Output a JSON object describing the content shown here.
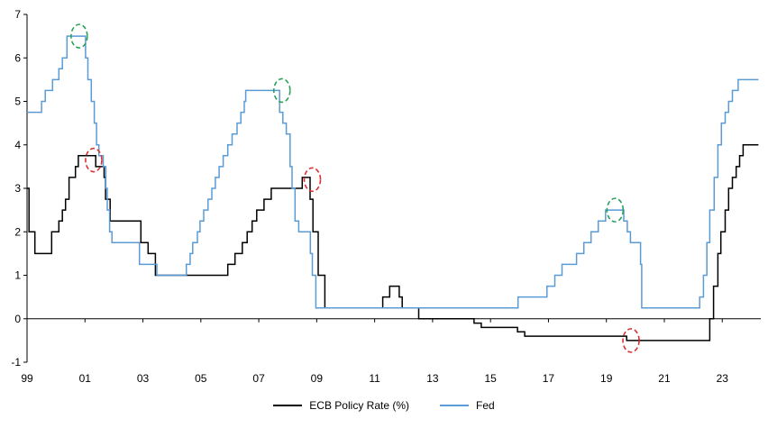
{
  "chart_data": {
    "type": "line",
    "title": "",
    "xlabel": "",
    "ylabel": "",
    "grid": false,
    "legend_position": "bottom",
    "xlim": [
      1999,
      2024.33
    ],
    "ylim": [
      -1,
      7
    ],
    "y_ticks": [
      -1,
      0,
      1,
      2,
      3,
      4,
      5,
      6,
      7
    ],
    "x_ticks": [
      1999,
      2001,
      2003,
      2005,
      2007,
      2009,
      2011,
      2013,
      2015,
      2017,
      2019,
      2021,
      2023
    ],
    "x_tick_labels": [
      "99",
      "01",
      "03",
      "05",
      "07",
      "09",
      "11",
      "13",
      "15",
      "17",
      "19",
      "21",
      "23"
    ],
    "axis_color": "#000000",
    "series": [
      {
        "name": "ECB Policy Rate (%)",
        "color": "#000000",
        "step": true,
        "points": [
          [
            1999.0,
            3.0
          ],
          [
            1999.07,
            2.0
          ],
          [
            1999.27,
            1.5
          ],
          [
            1999.85,
            2.0
          ],
          [
            2000.1,
            2.25
          ],
          [
            2000.22,
            2.5
          ],
          [
            2000.33,
            2.75
          ],
          [
            2000.45,
            3.25
          ],
          [
            2000.67,
            3.5
          ],
          [
            2000.77,
            3.75
          ],
          [
            2001.37,
            3.5
          ],
          [
            2001.66,
            3.25
          ],
          [
            2001.71,
            2.75
          ],
          [
            2001.87,
            2.25
          ],
          [
            2002.93,
            1.75
          ],
          [
            2003.18,
            1.5
          ],
          [
            2003.43,
            1.0
          ],
          [
            2005.93,
            1.25
          ],
          [
            2006.18,
            1.5
          ],
          [
            2006.43,
            1.75
          ],
          [
            2006.6,
            2.0
          ],
          [
            2006.77,
            2.25
          ],
          [
            2006.93,
            2.5
          ],
          [
            2007.18,
            2.75
          ],
          [
            2007.43,
            3.0
          ],
          [
            2008.5,
            3.25
          ],
          [
            2008.77,
            2.75
          ],
          [
            2008.87,
            2.0
          ],
          [
            2009.05,
            1.0
          ],
          [
            2009.28,
            0.25
          ],
          [
            2011.28,
            0.5
          ],
          [
            2011.52,
            0.75
          ],
          [
            2011.85,
            0.5
          ],
          [
            2011.95,
            0.25
          ],
          [
            2012.52,
            0.0
          ],
          [
            2014.43,
            -0.1
          ],
          [
            2014.68,
            -0.2
          ],
          [
            2015.93,
            -0.3
          ],
          [
            2016.18,
            -0.4
          ],
          [
            2019.7,
            -0.5
          ],
          [
            2022.57,
            0.0
          ],
          [
            2022.7,
            0.75
          ],
          [
            2022.85,
            1.5
          ],
          [
            2022.95,
            2.0
          ],
          [
            2023.1,
            2.5
          ],
          [
            2023.22,
            3.0
          ],
          [
            2023.35,
            3.25
          ],
          [
            2023.48,
            3.5
          ],
          [
            2023.6,
            3.75
          ],
          [
            2023.72,
            4.0
          ],
          [
            2024.25,
            4.0
          ]
        ]
      },
      {
        "name": "Fed",
        "color": "#5b9bd5",
        "step": true,
        "points": [
          [
            1999.0,
            4.75
          ],
          [
            1999.5,
            5.0
          ],
          [
            1999.63,
            5.25
          ],
          [
            1999.88,
            5.5
          ],
          [
            2000.1,
            5.75
          ],
          [
            2000.22,
            6.0
          ],
          [
            2000.38,
            6.5
          ],
          [
            2001.02,
            6.0
          ],
          [
            2001.1,
            5.5
          ],
          [
            2001.22,
            5.0
          ],
          [
            2001.32,
            4.5
          ],
          [
            2001.4,
            4.0
          ],
          [
            2001.48,
            3.75
          ],
          [
            2001.63,
            3.5
          ],
          [
            2001.72,
            3.0
          ],
          [
            2001.77,
            2.5
          ],
          [
            2001.85,
            2.0
          ],
          [
            2001.93,
            1.75
          ],
          [
            2002.88,
            1.25
          ],
          [
            2003.48,
            1.0
          ],
          [
            2004.5,
            1.25
          ],
          [
            2004.63,
            1.5
          ],
          [
            2004.72,
            1.75
          ],
          [
            2004.88,
            2.0
          ],
          [
            2004.97,
            2.25
          ],
          [
            2005.1,
            2.5
          ],
          [
            2005.25,
            2.75
          ],
          [
            2005.38,
            3.0
          ],
          [
            2005.5,
            3.25
          ],
          [
            2005.63,
            3.5
          ],
          [
            2005.77,
            3.75
          ],
          [
            2005.93,
            4.0
          ],
          [
            2006.08,
            4.25
          ],
          [
            2006.25,
            4.5
          ],
          [
            2006.38,
            4.75
          ],
          [
            2006.5,
            5.0
          ],
          [
            2006.55,
            5.25
          ],
          [
            2007.72,
            4.75
          ],
          [
            2007.83,
            4.5
          ],
          [
            2007.95,
            4.25
          ],
          [
            2008.08,
            3.5
          ],
          [
            2008.15,
            3.0
          ],
          [
            2008.25,
            2.25
          ],
          [
            2008.38,
            2.0
          ],
          [
            2008.78,
            1.5
          ],
          [
            2008.85,
            1.0
          ],
          [
            2008.97,
            0.25
          ],
          [
            2015.95,
            0.5
          ],
          [
            2016.95,
            0.75
          ],
          [
            2017.22,
            1.0
          ],
          [
            2017.47,
            1.25
          ],
          [
            2017.97,
            1.5
          ],
          [
            2018.22,
            1.75
          ],
          [
            2018.47,
            2.0
          ],
          [
            2018.72,
            2.25
          ],
          [
            2018.97,
            2.5
          ],
          [
            2019.6,
            2.25
          ],
          [
            2019.72,
            2.0
          ],
          [
            2019.83,
            1.75
          ],
          [
            2020.18,
            1.25
          ],
          [
            2020.22,
            0.25
          ],
          [
            2022.22,
            0.5
          ],
          [
            2022.35,
            1.0
          ],
          [
            2022.47,
            1.75
          ],
          [
            2022.57,
            2.5
          ],
          [
            2022.72,
            3.25
          ],
          [
            2022.85,
            4.0
          ],
          [
            2022.97,
            4.5
          ],
          [
            2023.1,
            4.75
          ],
          [
            2023.22,
            5.0
          ],
          [
            2023.35,
            5.25
          ],
          [
            2023.55,
            5.5
          ],
          [
            2024.25,
            5.5
          ]
        ]
      }
    ],
    "annotations": [
      {
        "type": "ellipse",
        "x": 2000.8,
        "y": 6.5,
        "color": "#2aa05a",
        "note": "Fed peak 6.5"
      },
      {
        "type": "ellipse",
        "x": 2007.8,
        "y": 5.25,
        "color": "#2aa05a",
        "note": "Fed peak 5.25"
      },
      {
        "type": "ellipse",
        "x": 2019.3,
        "y": 2.5,
        "color": "#2aa05a",
        "note": "Fed peak 2.5"
      },
      {
        "type": "ellipse",
        "x": 2001.3,
        "y": 3.65,
        "color": "#d93032",
        "note": "ECB peak 3.75"
      },
      {
        "type": "ellipse",
        "x": 2008.85,
        "y": 3.2,
        "color": "#d93032",
        "note": "ECB peak 3.25"
      },
      {
        "type": "ellipse",
        "x": 2019.85,
        "y": -0.5,
        "color": "#d93032",
        "note": "ECB trough -0.5"
      }
    ],
    "legend": [
      {
        "label": "ECB Policy Rate (%)",
        "color": "#000000"
      },
      {
        "label": "Fed",
        "color": "#5b9bd5"
      }
    ]
  }
}
